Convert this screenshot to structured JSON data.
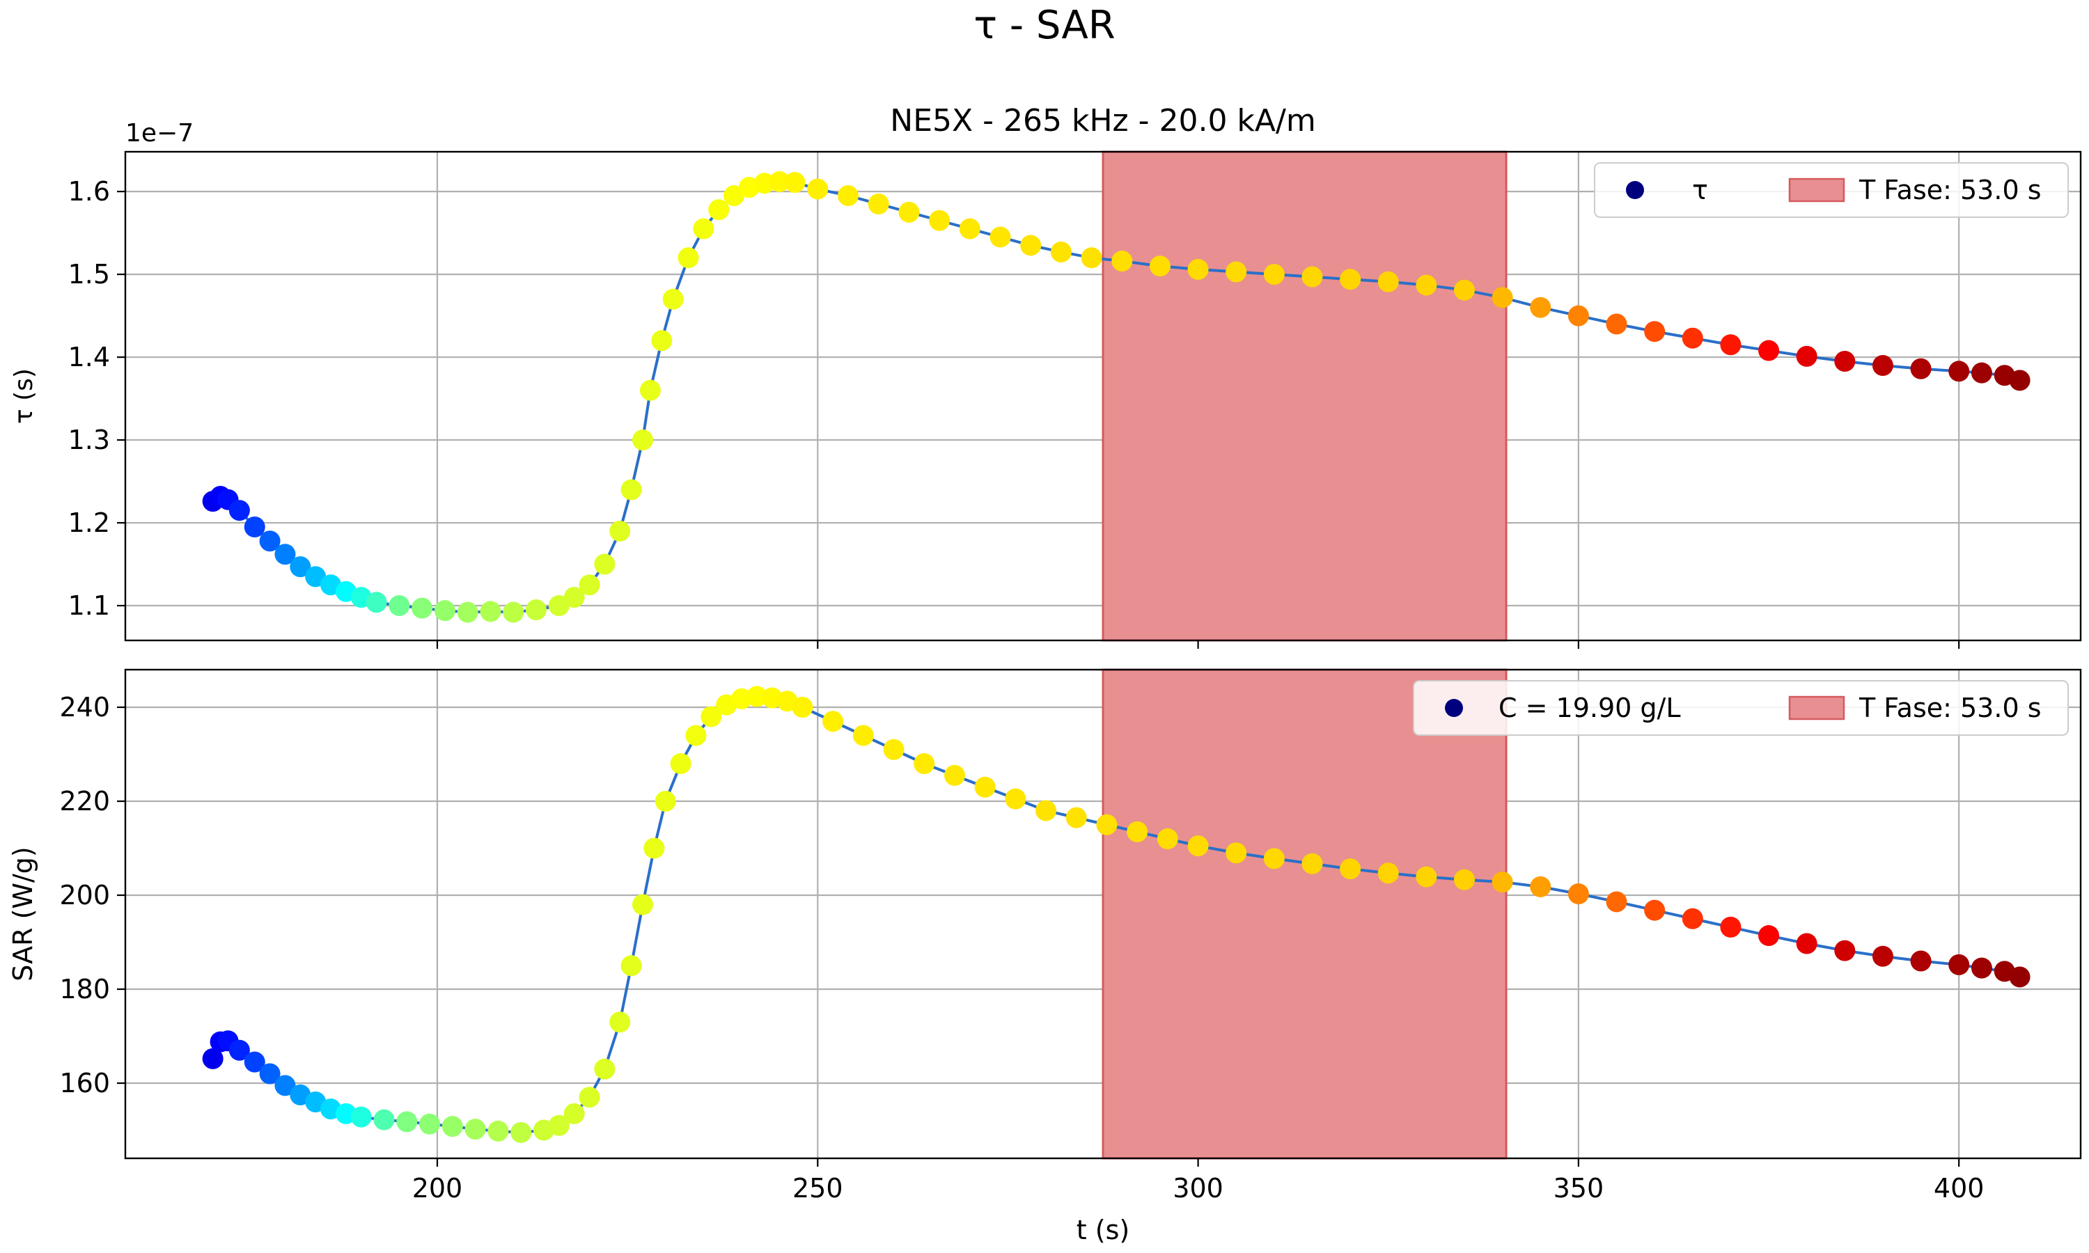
{
  "figure": {
    "suptitle": "τ - SAR"
  },
  "chart_data": [
    {
      "type": "scatter",
      "title": "NE5X - 265 kHz - 20.0 kA/m",
      "xlabel": "",
      "ylabel": "τ (s)",
      "y_offset_label": "1e−7",
      "xlim": [
        159,
        416
      ],
      "ylim": [
        1.058,
        1.648
      ],
      "y_scale_factor": 1e-07,
      "xticks": [
        200,
        250,
        300,
        350,
        400
      ],
      "xtick_labels": [
        "",
        "",
        "",
        "",
        ""
      ],
      "yticks": [
        1.1,
        1.2,
        1.3,
        1.4,
        1.5,
        1.6
      ],
      "ytick_labels": [
        "1.1",
        "1.2",
        "1.3",
        "1.4",
        "1.5",
        "1.6"
      ],
      "grid": true,
      "legend_position": "top-right",
      "legend": [
        {
          "label": "τ",
          "kind": "marker",
          "color": "#00007f"
        },
        {
          "label": "T Fase: 53.0 s",
          "kind": "patch",
          "color": "#e88f91"
        }
      ],
      "shaded_span": {
        "x_start": 287.5,
        "x_end": 340.5,
        "color": "#e88f91",
        "edge_color": "#d45a5e"
      },
      "line_color": "#2a6fc9",
      "colormap": "jet",
      "series": [
        {
          "name": "τ",
          "points": [
            [
              170.5,
              1.226
            ],
            [
              171.5,
              1.232
            ],
            [
              172.5,
              1.228
            ],
            [
              174,
              1.215
            ],
            [
              176,
              1.195
            ],
            [
              178,
              1.178
            ],
            [
              180,
              1.162
            ],
            [
              182,
              1.147
            ],
            [
              184,
              1.135
            ],
            [
              186,
              1.125
            ],
            [
              188,
              1.117
            ],
            [
              190,
              1.11
            ],
            [
              192,
              1.104
            ],
            [
              195,
              1.1
            ],
            [
              198,
              1.097
            ],
            [
              201,
              1.094
            ],
            [
              204,
              1.092
            ],
            [
              207,
              1.093
            ],
            [
              210,
              1.092
            ],
            [
              213,
              1.095
            ],
            [
              216,
              1.1
            ],
            [
              218,
              1.11
            ],
            [
              220,
              1.125
            ],
            [
              222,
              1.15
            ],
            [
              224,
              1.19
            ],
            [
              225.5,
              1.24
            ],
            [
              227,
              1.3
            ],
            [
              228,
              1.36
            ],
            [
              229.5,
              1.42
            ],
            [
              231,
              1.47
            ],
            [
              233,
              1.52
            ],
            [
              235,
              1.555
            ],
            [
              237,
              1.578
            ],
            [
              239,
              1.595
            ],
            [
              241,
              1.605
            ],
            [
              243,
              1.61
            ],
            [
              245,
              1.612
            ],
            [
              247,
              1.611
            ],
            [
              250,
              1.603
            ],
            [
              254,
              1.595
            ],
            [
              258,
              1.585
            ],
            [
              262,
              1.575
            ],
            [
              266,
              1.565
            ],
            [
              270,
              1.555
            ],
            [
              274,
              1.545
            ],
            [
              278,
              1.535
            ],
            [
              282,
              1.527
            ],
            [
              286,
              1.52
            ],
            [
              290,
              1.516
            ],
            [
              295,
              1.51
            ],
            [
              300,
              1.506
            ],
            [
              305,
              1.503
            ],
            [
              310,
              1.5
            ],
            [
              315,
              1.497
            ],
            [
              320,
              1.494
            ],
            [
              325,
              1.491
            ],
            [
              330,
              1.487
            ],
            [
              335,
              1.481
            ],
            [
              340,
              1.472
            ],
            [
              345,
              1.46
            ],
            [
              350,
              1.45
            ],
            [
              355,
              1.44
            ],
            [
              360,
              1.431
            ],
            [
              365,
              1.423
            ],
            [
              370,
              1.415
            ],
            [
              375,
              1.408
            ],
            [
              380,
              1.401
            ],
            [
              385,
              1.395
            ],
            [
              390,
              1.39
            ],
            [
              395,
              1.386
            ],
            [
              400,
              1.383
            ],
            [
              403,
              1.381
            ],
            [
              406,
              1.378
            ],
            [
              408,
              1.372
            ]
          ]
        }
      ]
    },
    {
      "type": "scatter",
      "title": "",
      "xlabel": "t (s)",
      "ylabel": "SAR (W/g)",
      "xlim": [
        159,
        416
      ],
      "ylim": [
        144,
        248
      ],
      "xticks": [
        200,
        250,
        300,
        350,
        400
      ],
      "xtick_labels": [
        "200",
        "250",
        "300",
        "350",
        "400"
      ],
      "yticks": [
        160,
        180,
        200,
        220,
        240
      ],
      "ytick_labels": [
        "160",
        "180",
        "200",
        "220",
        "240"
      ],
      "grid": true,
      "legend_position": "top-right",
      "legend": [
        {
          "label": "C = 19.90 g/L",
          "kind": "marker",
          "color": "#00007f"
        },
        {
          "label": "T Fase: 53.0 s",
          "kind": "patch",
          "color": "#e88f91"
        }
      ],
      "shaded_span": {
        "x_start": 287.5,
        "x_end": 340.5,
        "color": "#e88f91",
        "edge_color": "#d45a5e"
      },
      "line_color": "#2a6fc9",
      "colormap": "jet",
      "series": [
        {
          "name": "C = 19.90 g/L",
          "points": [
            [
              170.5,
              165.2
            ],
            [
              171.5,
              168.8
            ],
            [
              172.5,
              169.0
            ],
            [
              174,
              167.0
            ],
            [
              176,
              164.5
            ],
            [
              178,
              162.0
            ],
            [
              180,
              159.5
            ],
            [
              182,
              157.5
            ],
            [
              184,
              156.0
            ],
            [
              186,
              154.5
            ],
            [
              188,
              153.5
            ],
            [
              190,
              152.8
            ],
            [
              193,
              152.2
            ],
            [
              196,
              151.8
            ],
            [
              199,
              151.3
            ],
            [
              202,
              150.8
            ],
            [
              205,
              150.2
            ],
            [
              208,
              149.8
            ],
            [
              211,
              149.5
            ],
            [
              214,
              150.0
            ],
            [
              216,
              151.0
            ],
            [
              218,
              153.5
            ],
            [
              220,
              157.0
            ],
            [
              222,
              163.0
            ],
            [
              224,
              173.0
            ],
            [
              225.5,
              185.0
            ],
            [
              227,
              198.0
            ],
            [
              228.5,
              210.0
            ],
            [
              230,
              220.0
            ],
            [
              232,
              228.0
            ],
            [
              234,
              234.0
            ],
            [
              236,
              238.0
            ],
            [
              238,
              240.5
            ],
            [
              240,
              241.8
            ],
            [
              242,
              242.3
            ],
            [
              244,
              242.0
            ],
            [
              246,
              241.3
            ],
            [
              248,
              240.0
            ],
            [
              252,
              237.0
            ],
            [
              256,
              234.0
            ],
            [
              260,
              231.0
            ],
            [
              264,
              228.0
            ],
            [
              268,
              225.5
            ],
            [
              272,
              223.0
            ],
            [
              276,
              220.5
            ],
            [
              280,
              218.0
            ],
            [
              284,
              216.5
            ],
            [
              288,
              215.0
            ],
            [
              292,
              213.5
            ],
            [
              296,
              212.0
            ],
            [
              300,
              210.5
            ],
            [
              305,
              209.0
            ],
            [
              310,
              207.8
            ],
            [
              315,
              206.7
            ],
            [
              320,
              205.6
            ],
            [
              325,
              204.7
            ],
            [
              330,
              203.9
            ],
            [
              335,
              203.3
            ],
            [
              340,
              202.8
            ],
            [
              345,
              201.8
            ],
            [
              350,
              200.3
            ],
            [
              355,
              198.6
            ],
            [
              360,
              196.8
            ],
            [
              365,
              195.0
            ],
            [
              370,
              193.2
            ],
            [
              375,
              191.4
            ],
            [
              380,
              189.7
            ],
            [
              385,
              188.2
            ],
            [
              390,
              187.0
            ],
            [
              395,
              186.0
            ],
            [
              400,
              185.2
            ],
            [
              403,
              184.5
            ],
            [
              406,
              183.8
            ],
            [
              408,
              182.6
            ]
          ]
        }
      ]
    }
  ]
}
